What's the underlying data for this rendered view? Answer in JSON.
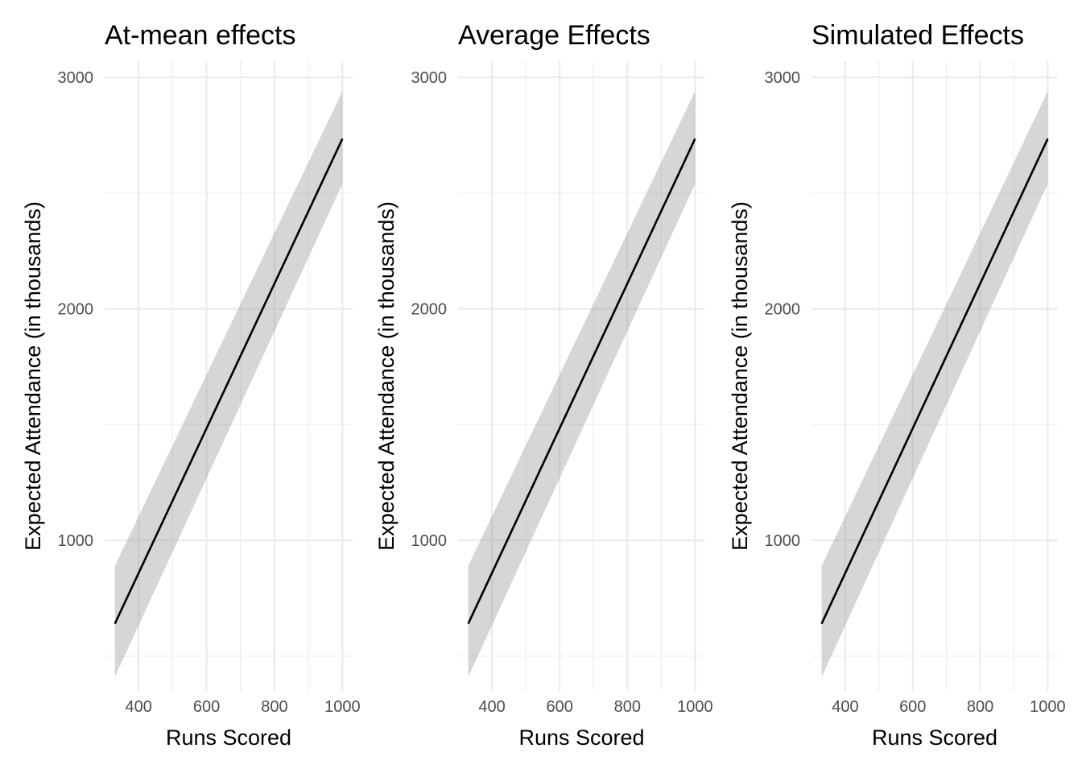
{
  "chart_data": [
    {
      "type": "line",
      "title": "At-mean effects",
      "xlabel": "Runs Scored",
      "ylabel": "Expected Attendance (in thousands)",
      "xlim": [
        300,
        1030
      ],
      "ylim": [
        350,
        3070
      ],
      "x_ticks": [
        400,
        600,
        800,
        1000
      ],
      "y_ticks": [
        1000,
        2000,
        3000
      ],
      "x_minor": [
        500,
        700,
        900
      ],
      "y_minor": [
        500,
        1500,
        2500
      ],
      "grid": true,
      "series": [
        {
          "x": [
            330,
            1000
          ],
          "y": [
            640,
            2735
          ],
          "lower": [
            410,
            2540
          ],
          "upper": [
            890,
            2940
          ]
        }
      ]
    },
    {
      "type": "line",
      "title": "Average Effects",
      "xlabel": "Runs Scored",
      "ylabel": "Expected Attendance (in thousands)",
      "xlim": [
        300,
        1030
      ],
      "ylim": [
        350,
        3070
      ],
      "x_ticks": [
        400,
        600,
        800,
        1000
      ],
      "y_ticks": [
        1000,
        2000,
        3000
      ],
      "x_minor": [
        500,
        700,
        900
      ],
      "y_minor": [
        500,
        1500,
        2500
      ],
      "grid": true,
      "series": [
        {
          "x": [
            330,
            1000
          ],
          "y": [
            640,
            2735
          ],
          "lower": [
            410,
            2540
          ],
          "upper": [
            890,
            2940
          ]
        }
      ]
    },
    {
      "type": "line",
      "title": "Simulated Effects",
      "xlabel": "Runs Scored",
      "ylabel": "Expected Attendance (in thousands)",
      "xlim": [
        300,
        1030
      ],
      "ylim": [
        350,
        3070
      ],
      "x_ticks": [
        400,
        600,
        800,
        1000
      ],
      "y_ticks": [
        1000,
        2000,
        3000
      ],
      "x_minor": [
        500,
        700,
        900
      ],
      "y_minor": [
        500,
        1500,
        2500
      ],
      "grid": true,
      "series": [
        {
          "x": [
            330,
            1000
          ],
          "y": [
            640,
            2735
          ],
          "lower": [
            410,
            2540
          ],
          "upper": [
            890,
            2940
          ]
        }
      ]
    }
  ]
}
